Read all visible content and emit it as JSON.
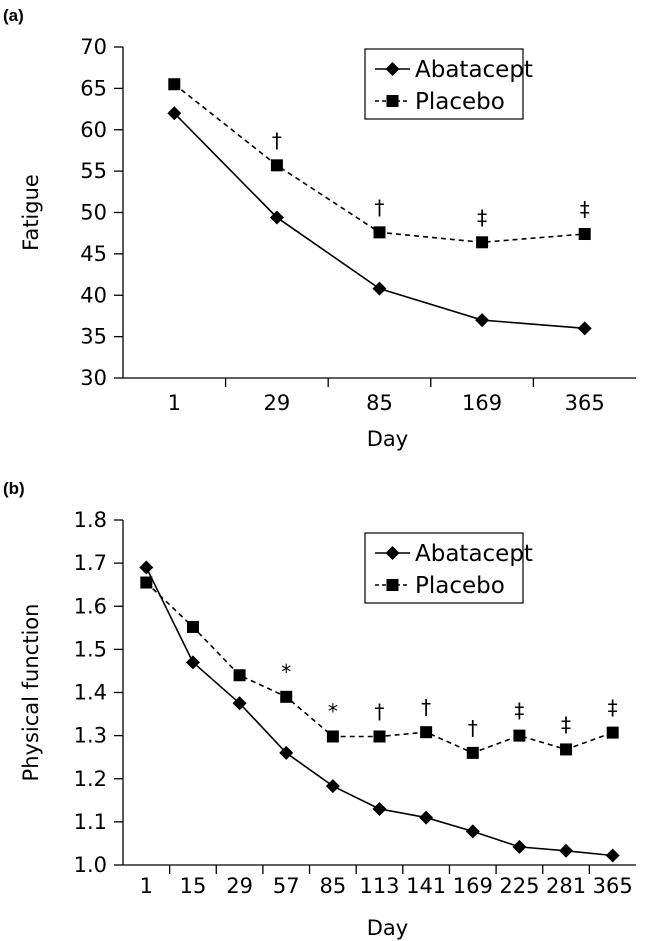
{
  "chart_data": [
    {
      "type": "line",
      "panel_label": "(a)",
      "xlabel": "Day",
      "ylabel": "Fatigue",
      "categories": [
        "1",
        "29",
        "85",
        "169",
        "365"
      ],
      "ylim": [
        30,
        70
      ],
      "yticks": [
        "30",
        "35",
        "40",
        "45",
        "50",
        "55",
        "60",
        "65",
        "70"
      ],
      "grid": false,
      "legend_position": "top-right",
      "series": [
        {
          "name": "Abatacept",
          "marker": "diamond",
          "line": "solid",
          "values": [
            62.0,
            49.4,
            40.8,
            37.0,
            36.0
          ]
        },
        {
          "name": "Placebo",
          "marker": "square",
          "line": "dashed",
          "values": [
            65.5,
            55.7,
            47.6,
            46.4,
            47.4
          ]
        }
      ],
      "annotations": [
        {
          "category": "29",
          "text": "†"
        },
        {
          "category": "85",
          "text": "†"
        },
        {
          "category": "169",
          "text": "‡"
        },
        {
          "category": "365",
          "text": "‡"
        }
      ]
    },
    {
      "type": "line",
      "panel_label": "(b)",
      "xlabel": "Day",
      "ylabel": "Physical function",
      "categories": [
        "1",
        "15",
        "29",
        "57",
        "85",
        "113",
        "141",
        "169",
        "225",
        "281",
        "365"
      ],
      "ylim": [
        1.0,
        1.8
      ],
      "yticks": [
        "1.0",
        "1.1",
        "1.2",
        "1.3",
        "1.4",
        "1.5",
        "1.6",
        "1.7",
        "1.8"
      ],
      "grid": false,
      "legend_position": "top-right",
      "series": [
        {
          "name": "Abatacept",
          "marker": "diamond",
          "line": "solid",
          "values": [
            1.69,
            1.47,
            1.375,
            1.26,
            1.183,
            1.13,
            1.11,
            1.078,
            1.042,
            1.033,
            1.022
          ]
        },
        {
          "name": "Placebo",
          "marker": "square",
          "line": "dashed",
          "values": [
            1.655,
            1.552,
            1.44,
            1.39,
            1.298,
            1.298,
            1.308,
            1.26,
            1.3,
            1.268,
            1.307
          ]
        }
      ],
      "annotations": [
        {
          "category": "57",
          "text": "*"
        },
        {
          "category": "85",
          "text": "*"
        },
        {
          "category": "113",
          "text": "†"
        },
        {
          "category": "141",
          "text": "†"
        },
        {
          "category": "169",
          "text": "†"
        },
        {
          "category": "225",
          "text": "‡"
        },
        {
          "category": "281",
          "text": "‡"
        },
        {
          "category": "365",
          "text": "‡"
        }
      ]
    }
  ]
}
